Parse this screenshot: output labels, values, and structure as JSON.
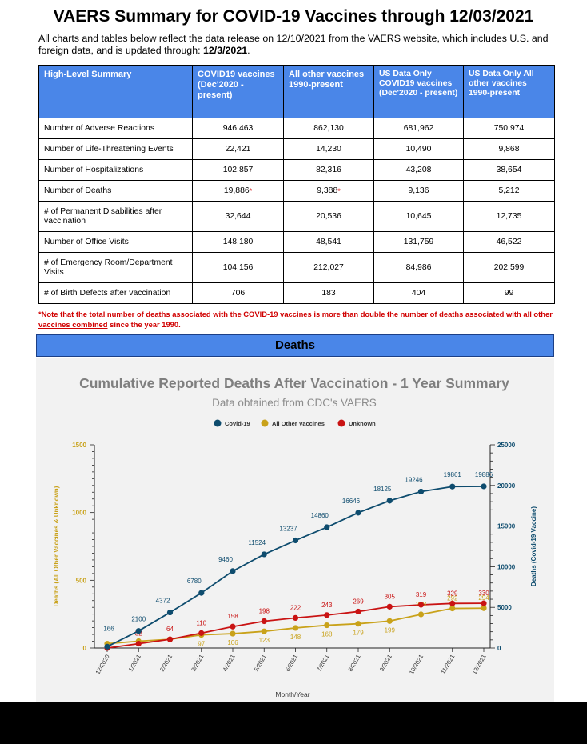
{
  "title": "VAERS Summary for COVID-19 Vaccines through 12/03/2021",
  "intro": {
    "text": "All charts and tables below reflect the data release on 12/10/2021 from the VAERS website, which includes U.S. and foreign data, and is updated through: ",
    "date": "12/3/2021",
    "end": "."
  },
  "table": {
    "headers": [
      "High-Level Summary",
      "COVID19 vaccines (Dec'2020 - present)",
      "All other vaccines 1990-present",
      "US Data Only COVID19 vaccines (Dec'2020 - present)",
      "US Data Only All other vaccines 1990-present"
    ],
    "rows": [
      {
        "label": "Number of Adverse Reactions",
        "v": [
          "946,463",
          "862,130",
          "681,962",
          "750,974"
        ]
      },
      {
        "label": "Number of Life-Threatening Events",
        "v": [
          "22,421",
          "14,230",
          "10,490",
          "9,868"
        ]
      },
      {
        "label": "Number of Hospitalizations",
        "v": [
          "102,857",
          "82,316",
          "43,208",
          "38,654"
        ]
      },
      {
        "label": "Number of Deaths",
        "v": [
          "19,886",
          "9,388",
          "9,136",
          "5,212"
        ]
      },
      {
        "label": "# of Permanent Disabilities after vaccination",
        "v": [
          "32,644",
          "20,536",
          "10,645",
          "12,735"
        ]
      },
      {
        "label": "Number of Office Visits",
        "v": [
          "148,180",
          "48,541",
          "131,759",
          "46,522"
        ]
      },
      {
        "label": "# of Emergency Room/Department Visits",
        "v": [
          "104,156",
          "212,027",
          "84,986",
          "202,599"
        ]
      },
      {
        "label": "# of Birth Defects after vaccination",
        "v": [
          "706",
          "183",
          "404",
          "99"
        ]
      }
    ],
    "asterisk": "*"
  },
  "note": {
    "part1": "*Note that the total number of deaths associated with the COVID-19 vaccines is more than double the number of deaths associated with ",
    "underlined": "all other vaccines combined",
    "part2": " since the year 1990."
  },
  "section_heading": "Deaths",
  "colors": {
    "covid": "#0e4c6e",
    "other": "#c9a21a",
    "unknown": "#c91313",
    "header_blue": "#4a86e8"
  },
  "chart_data": {
    "type": "line",
    "title": "Cumulative Reported Deaths After Vaccination - 1 Year Summary",
    "subtitle": "Data obtained from CDC's VAERS",
    "xlabel": "Month/Year",
    "ylabel_left": "Deaths (All Other Vaccines & Unknown)",
    "ylabel_right": "Deaths (Covid-19 Vaccine)",
    "ylim_left": [
      0,
      1500
    ],
    "ylim_right": [
      0,
      25000
    ],
    "yticks_left": [
      "0",
      "500",
      "1000",
      "1500"
    ],
    "yticks_right": [
      "0",
      "5000",
      "10000",
      "15000",
      "20000",
      "25000"
    ],
    "legend_position": "top-center",
    "categories": [
      "12/2020",
      "1/2021",
      "2/2021",
      "3/2021",
      "4/2021",
      "5/2021",
      "6/2021",
      "7/2021",
      "8/2021",
      "9/2021",
      "10/2021",
      "11/2021",
      "12/2021"
    ],
    "series": [
      {
        "name": "Covid-19",
        "axis": "right",
        "color": "#0e4c6e",
        "values": [
          166,
          2100,
          4372,
          6780,
          9460,
          11524,
          13237,
          14860,
          16646,
          18125,
          19246,
          19861,
          19886
        ]
      },
      {
        "name": "All Other Vaccines",
        "axis": "left",
        "color": "#c9a21a",
        "values": [
          32,
          50,
          64,
          97,
          106,
          123,
          148,
          168,
          179,
          199,
          248,
          292,
          294
        ]
      },
      {
        "name": "Unknown",
        "axis": "left",
        "color": "#c91313",
        "values": [
          0,
          32,
          64,
          110,
          158,
          198,
          222,
          243,
          269,
          305,
          319,
          329,
          330
        ]
      }
    ],
    "data_labels": {
      "Covid-19": [
        "166",
        "2100",
        "4372",
        "6780",
        "9460",
        "11524",
        "13237",
        "14860",
        "16646",
        "18125",
        "19246",
        "19861",
        "19886"
      ],
      "All Other Vaccines": [
        "",
        "",
        "",
        "97",
        "106",
        "123",
        "148",
        "168",
        "179",
        "199",
        "248",
        "292",
        "294"
      ],
      "Unknown": [
        "",
        "32",
        "64",
        "110",
        "158",
        "198",
        "222",
        "243",
        "269",
        "305",
        "319",
        "329",
        "330"
      ]
    }
  }
}
